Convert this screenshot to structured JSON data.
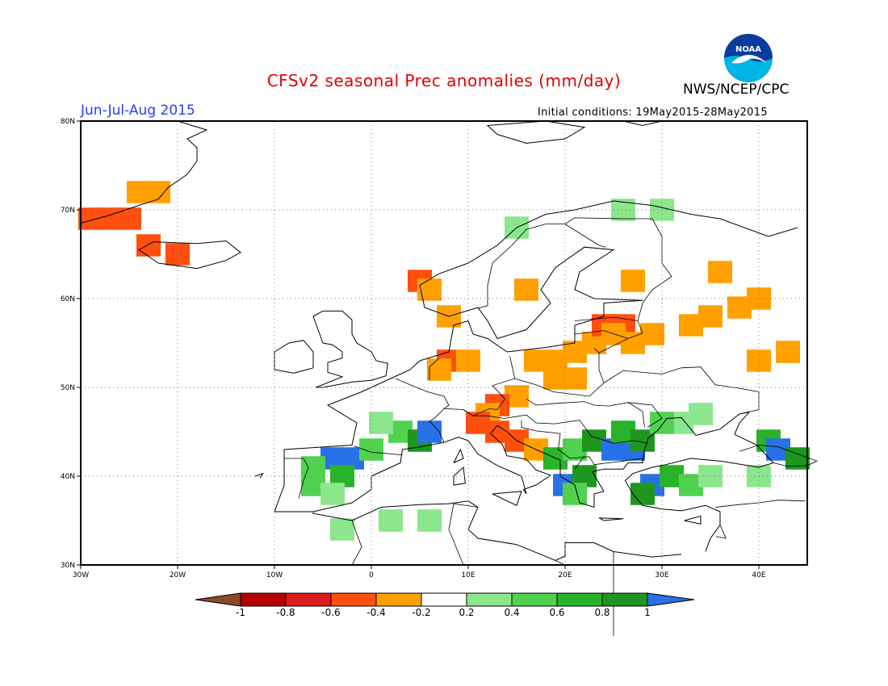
{
  "header": {
    "title": "CFSv2 seasonal Prec anomalies (mm/day)",
    "agency": "NWS/NCEP/CPC",
    "season": "Jun-Jul-Aug 2015",
    "initial_conditions": "Initial conditions: 19May2015-28May2015",
    "logo_text": "NOAA"
  },
  "map": {
    "lon_range": [
      -30,
      45
    ],
    "lat_range": [
      30,
      80
    ],
    "lat_labels": [
      "30N",
      "40N",
      "50N",
      "60N",
      "70N",
      "80N"
    ],
    "lon_labels": [
      "30W",
      "20W",
      "10W",
      "0",
      "10E",
      "20E",
      "30E",
      "40E"
    ]
  },
  "colorbar": {
    "tick_labels": [
      "-1",
      "-0.8",
      "-0.6",
      "-0.4",
      "-0.2",
      "0.2",
      "0.4",
      "0.6",
      "0.8",
      "1"
    ],
    "colors": [
      "#8b4a2b",
      "#b40000",
      "#dc1e1e",
      "#ff4f0f",
      "#ffa000",
      "#ffffff",
      "#8ce68c",
      "#50d250",
      "#28b428",
      "#1e961e",
      "#2870e6"
    ]
  },
  "anomalies": [
    {
      "lon": -29,
      "lat": 69,
      "cls": 3
    },
    {
      "lon": -27,
      "lat": 69,
      "cls": 3
    },
    {
      "lon": -25,
      "lat": 69,
      "cls": 3
    },
    {
      "lon": -24,
      "lat": 72,
      "cls": 4
    },
    {
      "lon": -22,
      "lat": 72,
      "cls": 4
    },
    {
      "lon": -23,
      "lat": 66,
      "cls": 3
    },
    {
      "lon": -20,
      "lat": 65,
      "cls": 3
    },
    {
      "lon": 5,
      "lat": 62,
      "cls": 3
    },
    {
      "lon": 6,
      "lat": 61,
      "cls": 4
    },
    {
      "lon": 8,
      "lat": 58,
      "cls": 4
    },
    {
      "lon": 8,
      "lat": 53,
      "cls": 3
    },
    {
      "lon": 10,
      "lat": 53,
      "cls": 4
    },
    {
      "lon": 7,
      "lat": 52,
      "cls": 4
    },
    {
      "lon": 17,
      "lat": 53,
      "cls": 4
    },
    {
      "lon": 19,
      "lat": 53,
      "cls": 4
    },
    {
      "lon": 21,
      "lat": 54,
      "cls": 4
    },
    {
      "lon": 23,
      "lat": 55,
      "cls": 4
    },
    {
      "lon": 24,
      "lat": 57,
      "cls": 3
    },
    {
      "lon": 26,
      "lat": 57,
      "cls": 3
    },
    {
      "lon": 25,
      "lat": 56,
      "cls": 4
    },
    {
      "lon": 27,
      "lat": 55,
      "cls": 4
    },
    {
      "lon": 29,
      "lat": 56,
      "cls": 4
    },
    {
      "lon": 19,
      "lat": 51,
      "cls": 4
    },
    {
      "lon": 21,
      "lat": 51,
      "cls": 4
    },
    {
      "lon": 15,
      "lat": 49,
      "cls": 4
    },
    {
      "lon": 13,
      "lat": 48,
      "cls": 3
    },
    {
      "lon": 12,
      "lat": 47,
      "cls": 4
    },
    {
      "lon": 11,
      "lat": 46,
      "cls": 3
    },
    {
      "lon": 13,
      "lat": 45,
      "cls": 3
    },
    {
      "lon": 15,
      "lat": 44,
      "cls": 3
    },
    {
      "lon": 17,
      "lat": 43,
      "cls": 4
    },
    {
      "lon": 33,
      "lat": 57,
      "cls": 4
    },
    {
      "lon": 35,
      "lat": 58,
      "cls": 4
    },
    {
      "lon": 38,
      "lat": 59,
      "cls": 4
    },
    {
      "lon": 40,
      "lat": 60,
      "cls": 4
    },
    {
      "lon": 43,
      "lat": 54,
      "cls": 4
    },
    {
      "lon": 40,
      "lat": 53,
      "cls": 4
    },
    {
      "lon": 36,
      "lat": 63,
      "cls": 4
    },
    {
      "lon": 27,
      "lat": 62,
      "cls": 4
    },
    {
      "lon": 16,
      "lat": 61,
      "cls": 4
    },
    {
      "lon": -4,
      "lat": 42,
      "cls": 10
    },
    {
      "lon": -2,
      "lat": 42,
      "cls": 10
    },
    {
      "lon": -6,
      "lat": 41,
      "cls": 7
    },
    {
      "lon": -3,
      "lat": 40,
      "cls": 8
    },
    {
      "lon": -6,
      "lat": 39,
      "cls": 7
    },
    {
      "lon": -4,
      "lat": 38,
      "cls": 6
    },
    {
      "lon": 0,
      "lat": 43,
      "cls": 7
    },
    {
      "lon": 3,
      "lat": 45,
      "cls": 7
    },
    {
      "lon": 5,
      "lat": 44,
      "cls": 9
    },
    {
      "lon": 6,
      "lat": 45,
      "cls": 10
    },
    {
      "lon": 1,
      "lat": 46,
      "cls": 6
    },
    {
      "lon": 2,
      "lat": 35,
      "cls": 6
    },
    {
      "lon": 6,
      "lat": 35,
      "cls": 6
    },
    {
      "lon": -3,
      "lat": 34,
      "cls": 6
    },
    {
      "lon": 19,
      "lat": 42,
      "cls": 8
    },
    {
      "lon": 21,
      "lat": 43,
      "cls": 7
    },
    {
      "lon": 23,
      "lat": 44,
      "cls": 9
    },
    {
      "lon": 25,
      "lat": 43,
      "cls": 10
    },
    {
      "lon": 27,
      "lat": 43,
      "cls": 10
    },
    {
      "lon": 26,
      "lat": 45,
      "cls": 8
    },
    {
      "lon": 28,
      "lat": 44,
      "cls": 9
    },
    {
      "lon": 20,
      "lat": 39,
      "cls": 10
    },
    {
      "lon": 22,
      "lat": 40,
      "cls": 9
    },
    {
      "lon": 21,
      "lat": 38,
      "cls": 7
    },
    {
      "lon": 29,
      "lat": 39,
      "cls": 10
    },
    {
      "lon": 28,
      "lat": 38,
      "cls": 9
    },
    {
      "lon": 31,
      "lat": 40,
      "cls": 8
    },
    {
      "lon": 33,
      "lat": 39,
      "cls": 7
    },
    {
      "lon": 35,
      "lat": 40,
      "cls": 6
    },
    {
      "lon": 32,
      "lat": 46,
      "cls": 6
    },
    {
      "lon": 34,
      "lat": 47,
      "cls": 6
    },
    {
      "lon": 30,
      "lat": 46,
      "cls": 7
    },
    {
      "lon": 41,
      "lat": 44,
      "cls": 8
    },
    {
      "lon": 42,
      "lat": 43,
      "cls": 10
    },
    {
      "lon": 44,
      "lat": 42,
      "cls": 9
    },
    {
      "lon": 40,
      "lat": 40,
      "cls": 6
    },
    {
      "lon": 26,
      "lat": 70,
      "cls": 6
    },
    {
      "lon": 30,
      "lat": 70,
      "cls": 6
    },
    {
      "lon": 15,
      "lat": 68,
      "cls": 6
    }
  ]
}
